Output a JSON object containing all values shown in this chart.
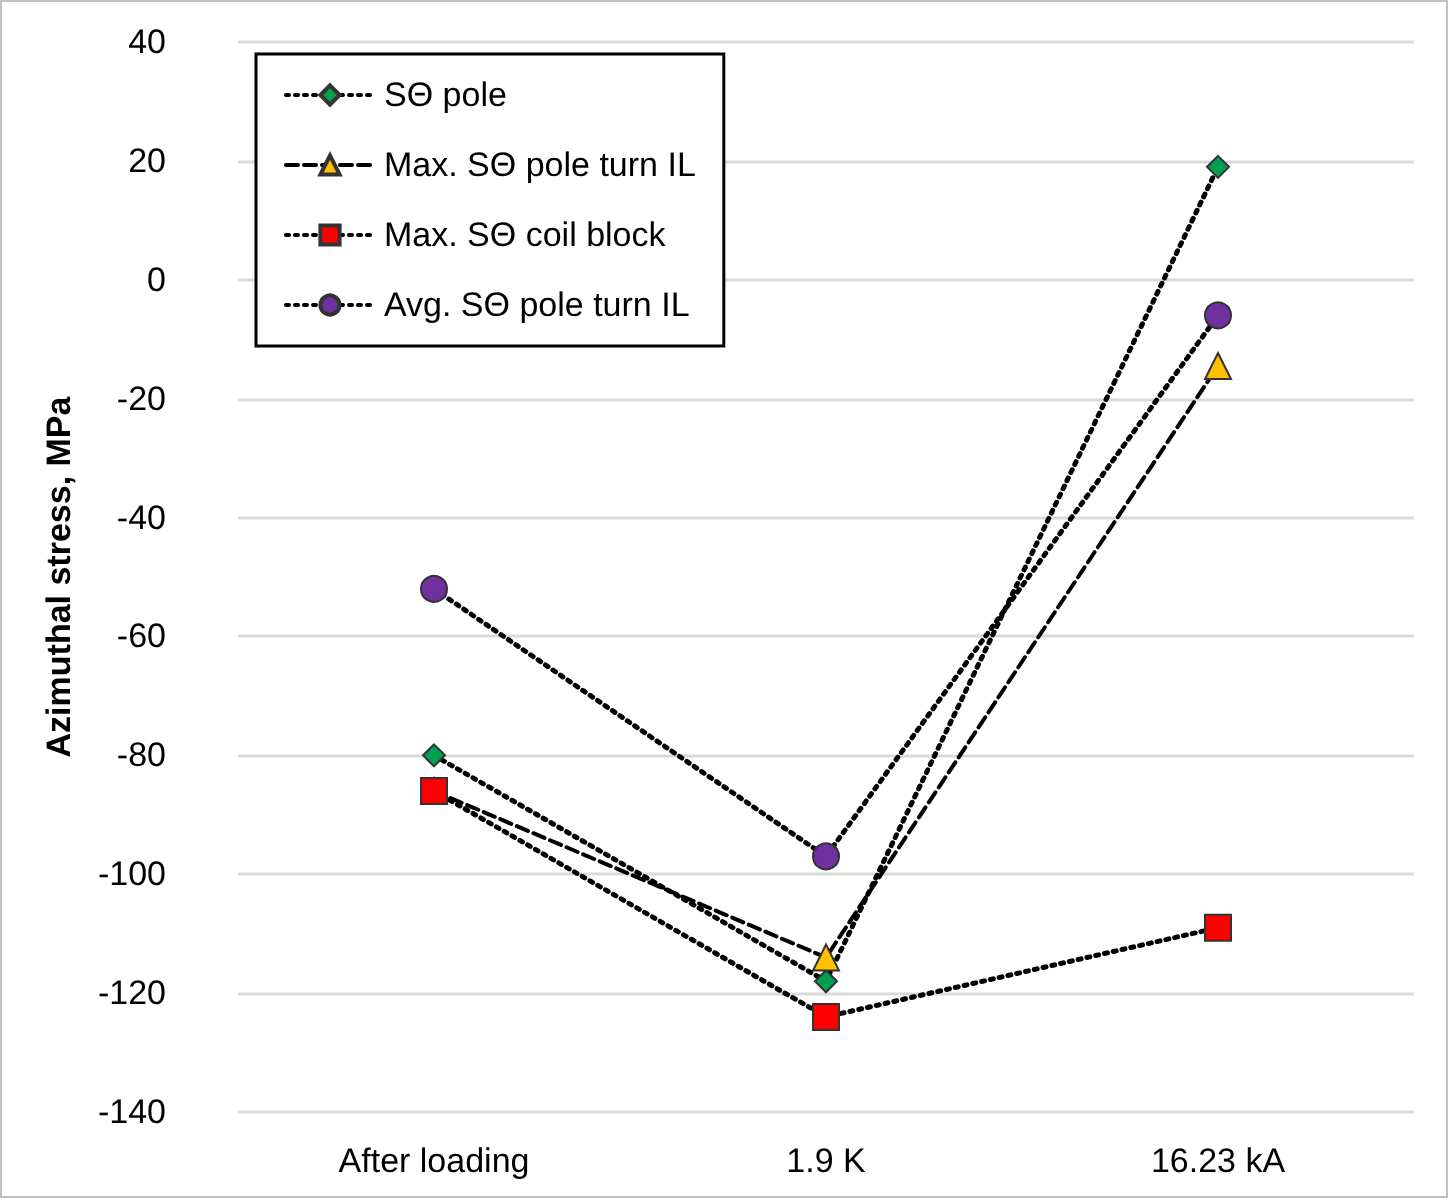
{
  "chart_data": {
    "type": "line",
    "ylabel": "Azimuthal stress, MPa",
    "categories": [
      "After loading",
      "1.9 K",
      "16.23 kA"
    ],
    "series": [
      {
        "name": "SΘ pole",
        "color": "#00a050",
        "marker": "diamond",
        "line_style": "dotted",
        "values": [
          -80,
          -118,
          19
        ]
      },
      {
        "name": "Max. SΘ pole turn IL",
        "color": "#ffc000",
        "marker": "triangle",
        "line_style": "dashed",
        "values": [
          -86,
          -114,
          -14.5
        ]
      },
      {
        "name": "Max. SΘ coil block",
        "color": "#ff0000",
        "marker": "square",
        "line_style": "dotted",
        "values": [
          -86,
          -124,
          -109
        ]
      },
      {
        "name": "Avg. SΘ pole turn IL",
        "color": "#7030a0",
        "marker": "circle",
        "line_style": "dotted",
        "values": [
          -52,
          -97,
          -6
        ]
      }
    ],
    "ylim": [
      -140,
      40
    ],
    "yticks": [
      -140,
      -120,
      -100,
      -80,
      -60,
      -40,
      -20,
      0,
      20,
      40
    ],
    "grid": "y",
    "legend": "top left"
  }
}
